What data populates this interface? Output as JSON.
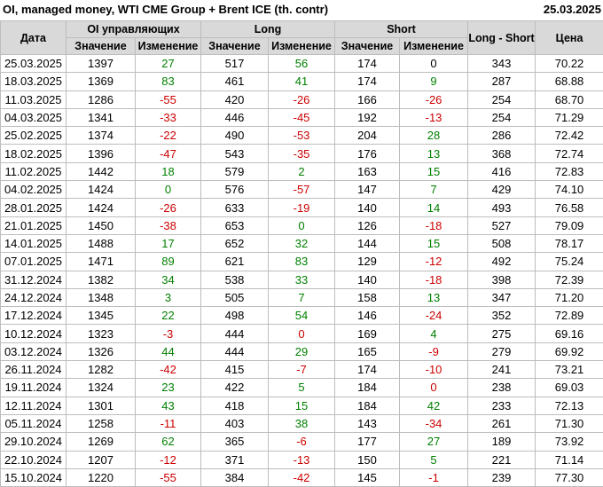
{
  "header": {
    "title": "OI, managed money, WTI CME Group + Brent ICE (th. contr)",
    "report_date": "25.03.2025"
  },
  "colors": {
    "positive": "#008000",
    "negative": "#cc0000",
    "neutral": "#000000",
    "header_bg": "#d9d9d9",
    "border": "#bdbdbd"
  },
  "table": {
    "col_date": "Дата",
    "group_oi": "OI управляющих",
    "group_long": "Long",
    "group_short": "Short",
    "col_value": "Значение",
    "col_change": "Изменение",
    "col_long_short": "Long - Short",
    "col_price": "Цена",
    "rows": [
      {
        "date": "25.03.2025",
        "oi": "1397",
        "oi_chg": "27",
        "oi_chg_c": "g",
        "long": "517",
        "long_chg": "56",
        "long_chg_c": "g",
        "short": "174",
        "short_chg": "0",
        "short_chg_c": "k",
        "ls": "343",
        "price": "70.22"
      },
      {
        "date": "18.03.2025",
        "oi": "1369",
        "oi_chg": "83",
        "oi_chg_c": "g",
        "long": "461",
        "long_chg": "41",
        "long_chg_c": "g",
        "short": "174",
        "short_chg": "9",
        "short_chg_c": "g",
        "ls": "287",
        "price": "68.88"
      },
      {
        "date": "11.03.2025",
        "oi": "1286",
        "oi_chg": "-55",
        "oi_chg_c": "r",
        "long": "420",
        "long_chg": "-26",
        "long_chg_c": "r",
        "short": "166",
        "short_chg": "-26",
        "short_chg_c": "r",
        "ls": "254",
        "price": "68.70"
      },
      {
        "date": "04.03.2025",
        "oi": "1341",
        "oi_chg": "-33",
        "oi_chg_c": "r",
        "long": "446",
        "long_chg": "-45",
        "long_chg_c": "r",
        "short": "192",
        "short_chg": "-13",
        "short_chg_c": "r",
        "ls": "254",
        "price": "71.29"
      },
      {
        "date": "25.02.2025",
        "oi": "1374",
        "oi_chg": "-22",
        "oi_chg_c": "r",
        "long": "490",
        "long_chg": "-53",
        "long_chg_c": "r",
        "short": "204",
        "short_chg": "28",
        "short_chg_c": "g",
        "ls": "286",
        "price": "72.42"
      },
      {
        "date": "18.02.2025",
        "oi": "1396",
        "oi_chg": "-47",
        "oi_chg_c": "r",
        "long": "543",
        "long_chg": "-35",
        "long_chg_c": "r",
        "short": "176",
        "short_chg": "13",
        "short_chg_c": "g",
        "ls": "368",
        "price": "72.74"
      },
      {
        "date": "11.02.2025",
        "oi": "1442",
        "oi_chg": "18",
        "oi_chg_c": "g",
        "long": "579",
        "long_chg": "2",
        "long_chg_c": "g",
        "short": "163",
        "short_chg": "15",
        "short_chg_c": "g",
        "ls": "416",
        "price": "72.83"
      },
      {
        "date": "04.02.2025",
        "oi": "1424",
        "oi_chg": "0",
        "oi_chg_c": "g",
        "long": "576",
        "long_chg": "-57",
        "long_chg_c": "r",
        "short": "147",
        "short_chg": "7",
        "short_chg_c": "g",
        "ls": "429",
        "price": "74.10"
      },
      {
        "date": "28.01.2025",
        "oi": "1424",
        "oi_chg": "-26",
        "oi_chg_c": "r",
        "long": "633",
        "long_chg": "-19",
        "long_chg_c": "r",
        "short": "140",
        "short_chg": "14",
        "short_chg_c": "g",
        "ls": "493",
        "price": "76.58"
      },
      {
        "date": "21.01.2025",
        "oi": "1450",
        "oi_chg": "-38",
        "oi_chg_c": "r",
        "long": "653",
        "long_chg": "0",
        "long_chg_c": "g",
        "short": "126",
        "short_chg": "-18",
        "short_chg_c": "r",
        "ls": "527",
        "price": "79.09"
      },
      {
        "date": "14.01.2025",
        "oi": "1488",
        "oi_chg": "17",
        "oi_chg_c": "g",
        "long": "652",
        "long_chg": "32",
        "long_chg_c": "g",
        "short": "144",
        "short_chg": "15",
        "short_chg_c": "g",
        "ls": "508",
        "price": "78.17"
      },
      {
        "date": "07.01.2025",
        "oi": "1471",
        "oi_chg": "89",
        "oi_chg_c": "g",
        "long": "621",
        "long_chg": "83",
        "long_chg_c": "g",
        "short": "129",
        "short_chg": "-12",
        "short_chg_c": "r",
        "ls": "492",
        "price": "75.24"
      },
      {
        "date": "31.12.2024",
        "oi": "1382",
        "oi_chg": "34",
        "oi_chg_c": "g",
        "long": "538",
        "long_chg": "33",
        "long_chg_c": "g",
        "short": "140",
        "short_chg": "-18",
        "short_chg_c": "r",
        "ls": "398",
        "price": "72.39"
      },
      {
        "date": "24.12.2024",
        "oi": "1348",
        "oi_chg": "3",
        "oi_chg_c": "g",
        "long": "505",
        "long_chg": "7",
        "long_chg_c": "g",
        "short": "158",
        "short_chg": "13",
        "short_chg_c": "g",
        "ls": "347",
        "price": "71.20"
      },
      {
        "date": "17.12.2024",
        "oi": "1345",
        "oi_chg": "22",
        "oi_chg_c": "g",
        "long": "498",
        "long_chg": "54",
        "long_chg_c": "g",
        "short": "146",
        "short_chg": "-24",
        "short_chg_c": "r",
        "ls": "352",
        "price": "72.89"
      },
      {
        "date": "10.12.2024",
        "oi": "1323",
        "oi_chg": "-3",
        "oi_chg_c": "r",
        "long": "444",
        "long_chg": "0",
        "long_chg_c": "r",
        "short": "169",
        "short_chg": "4",
        "short_chg_c": "g",
        "ls": "275",
        "price": "69.16"
      },
      {
        "date": "03.12.2024",
        "oi": "1326",
        "oi_chg": "44",
        "oi_chg_c": "g",
        "long": "444",
        "long_chg": "29",
        "long_chg_c": "g",
        "short": "165",
        "short_chg": "-9",
        "short_chg_c": "r",
        "ls": "279",
        "price": "69.92"
      },
      {
        "date": "26.11.2024",
        "oi": "1282",
        "oi_chg": "-42",
        "oi_chg_c": "r",
        "long": "415",
        "long_chg": "-7",
        "long_chg_c": "r",
        "short": "174",
        "short_chg": "-10",
        "short_chg_c": "r",
        "ls": "241",
        "price": "73.21"
      },
      {
        "date": "19.11.2024",
        "oi": "1324",
        "oi_chg": "23",
        "oi_chg_c": "g",
        "long": "422",
        "long_chg": "5",
        "long_chg_c": "g",
        "short": "184",
        "short_chg": "0",
        "short_chg_c": "r",
        "ls": "238",
        "price": "69.03"
      },
      {
        "date": "12.11.2024",
        "oi": "1301",
        "oi_chg": "43",
        "oi_chg_c": "g",
        "long": "418",
        "long_chg": "15",
        "long_chg_c": "g",
        "short": "184",
        "short_chg": "42",
        "short_chg_c": "g",
        "ls": "233",
        "price": "72.13"
      },
      {
        "date": "05.11.2024",
        "oi": "1258",
        "oi_chg": "-11",
        "oi_chg_c": "r",
        "long": "403",
        "long_chg": "38",
        "long_chg_c": "g",
        "short": "143",
        "short_chg": "-34",
        "short_chg_c": "r",
        "ls": "261",
        "price": "71.30"
      },
      {
        "date": "29.10.2024",
        "oi": "1269",
        "oi_chg": "62",
        "oi_chg_c": "g",
        "long": "365",
        "long_chg": "-6",
        "long_chg_c": "r",
        "short": "177",
        "short_chg": "27",
        "short_chg_c": "g",
        "ls": "189",
        "price": "73.92"
      },
      {
        "date": "22.10.2024",
        "oi": "1207",
        "oi_chg": "-12",
        "oi_chg_c": "r",
        "long": "371",
        "long_chg": "-13",
        "long_chg_c": "r",
        "short": "150",
        "short_chg": "5",
        "short_chg_c": "g",
        "ls": "221",
        "price": "71.14"
      },
      {
        "date": "15.10.2024",
        "oi": "1220",
        "oi_chg": "-55",
        "oi_chg_c": "r",
        "long": "384",
        "long_chg": "-42",
        "long_chg_c": "r",
        "short": "145",
        "short_chg": "-1",
        "short_chg_c": "r",
        "ls": "239",
        "price": "77.30"
      }
    ]
  }
}
